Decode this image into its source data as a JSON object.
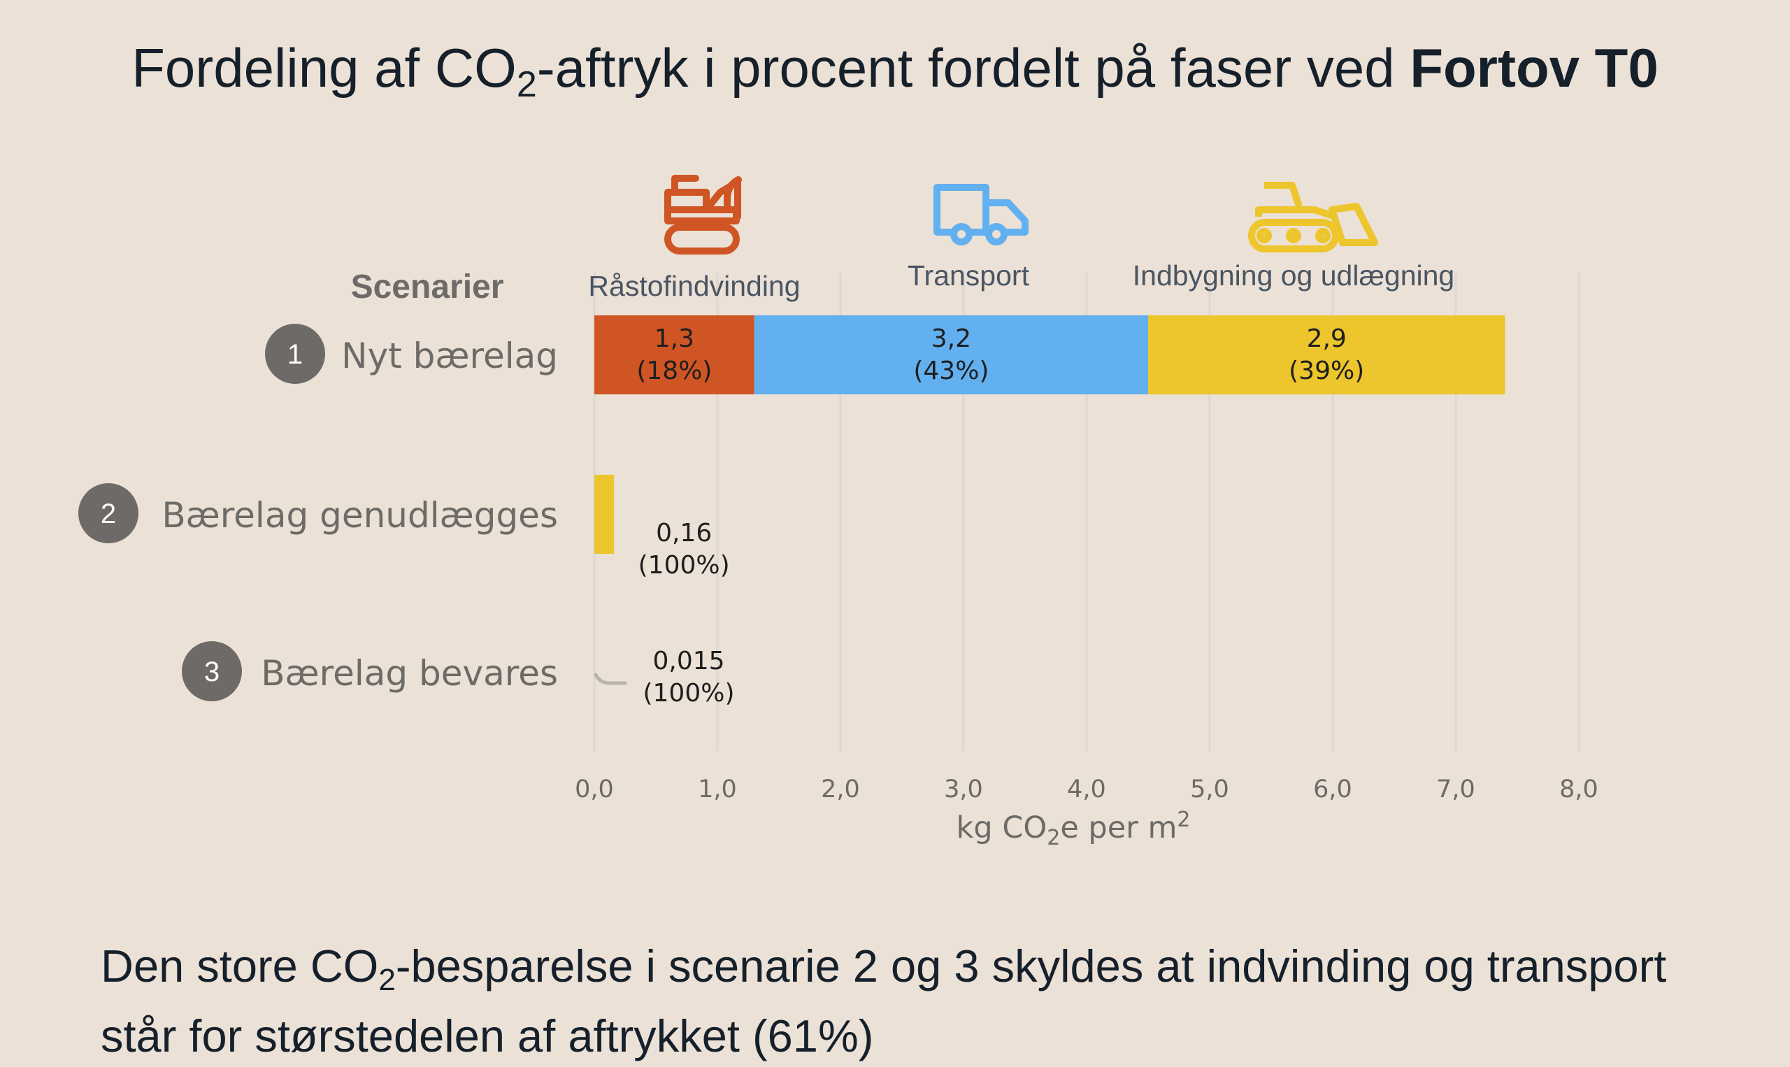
{
  "title": {
    "prefix": "Fordeling af CO",
    "sub": "2",
    "middle": "-aftryk i procent fordelt på faser ved ",
    "bold": "Fortov T0"
  },
  "footnote": {
    "line1_prefix": "Den store CO",
    "line1_sub": "2",
    "line1_rest": "-besparelse i scenarie 2 og 3 skyldes at indvinding og transport",
    "line2": "står for størstedelen af aftrykket (61%)"
  },
  "colors": {
    "background": "#ebe1d6",
    "raastof": "#d05524",
    "transport": "#62b0ef",
    "indbygning": "#edc52c",
    "badge": "#6d6a67",
    "grid": "#dcd8d2",
    "tiny_bar": "#b8b4ae"
  },
  "chart_data": {
    "type": "bar",
    "orientation": "horizontal",
    "stacked": true,
    "y_header": "Scenarier",
    "categories": [
      {
        "number": "1",
        "label": "Nyt bærelag"
      },
      {
        "number": "2",
        "label": "Bærelag genudlægges"
      },
      {
        "number": "3",
        "label": "Bærelag bevares"
      }
    ],
    "series": [
      {
        "name": "Råstofindvinding",
        "icon": "excavator-icon",
        "color": "#d05524",
        "values": [
          1.3,
          0,
          0
        ],
        "labels": [
          "1,3\n(18%)",
          "",
          ""
        ]
      },
      {
        "name": "Transport",
        "icon": "truck-icon",
        "color": "#62b0ef",
        "values": [
          3.2,
          0,
          0
        ],
        "labels": [
          "3,2\n(43%)",
          "",
          ""
        ]
      },
      {
        "name": "Indbygning og udlægning",
        "icon": "bulldozer-icon",
        "color": "#edc52c",
        "values": [
          2.9,
          0.16,
          0
        ],
        "labels": [
          "2,9\n(39%)",
          "0,16\n(100%)",
          ""
        ]
      }
    ],
    "small_values": [
      {
        "scenario": "3",
        "value": 0.015,
        "label": "0,015\n(100%)"
      }
    ],
    "xlim": [
      0,
      8
    ],
    "xticks": [
      "0,0",
      "1,0",
      "2,0",
      "3,0",
      "4,0",
      "5,0",
      "6,0",
      "7,0",
      "8,0"
    ],
    "xlabel": {
      "prefix": "kg CO",
      "sub": "2",
      "middle": "e per m",
      "sup": "2"
    },
    "grid": true
  }
}
